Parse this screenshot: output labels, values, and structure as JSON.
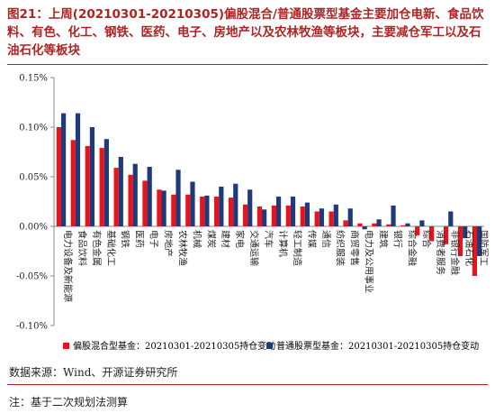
{
  "title": "图21：上周(20210301-20210305)偏股混合/普通股票型基金主要加仓电新、食品饮料、有色、化工、钢铁、医药、电子、房地产以及农林牧渔等板块，主要减仓军工以及石油石化等板块",
  "source": "数据来源：Wind、开源证券研究所",
  "note": "注：基于二次规划法测算",
  "colors": {
    "series1": "#e8141c",
    "series2": "#1f3a7a",
    "accent": "#b22222"
  },
  "chart_data": {
    "type": "bar",
    "ylim": [
      -0.1,
      0.15
    ],
    "yticks": [
      "0.15%",
      "0.10%",
      "0.05%",
      "0.00%",
      "-0.05%",
      "-0.10%"
    ],
    "ytick_values": [
      0.15,
      0.1,
      0.05,
      0.0,
      -0.05,
      -0.1
    ],
    "grid": false,
    "legend": "bottom",
    "categories": [
      "电力设备及新能源",
      "食品饮料",
      "有色金属",
      "基础化工",
      "钢铁",
      "医药",
      "电子",
      "房地产",
      "农林牧渔",
      "机械",
      "煤炭",
      "建材",
      "家电",
      "交通运输",
      "汽车",
      "计算机",
      "轻工制造",
      "传媒",
      "通信",
      "纺织服装",
      "商贸零售",
      "电力及公用事业",
      "建筑",
      "银行",
      "综合金融",
      "综合",
      "消费者服务",
      "非银行金融",
      "石油石化",
      "国防军工"
    ],
    "series": [
      {
        "name": "偏股混合型基金：20210301-20210305持仓变动",
        "values": [
          0.1,
          0.087,
          0.081,
          0.079,
          0.059,
          0.052,
          0.046,
          0.037,
          0.032,
          0.032,
          0.03,
          0.03,
          0.029,
          0.022,
          0.02,
          0.021,
          0.021,
          0.02,
          0.015,
          0.015,
          0.006,
          0.003,
          0.003,
          0.002,
          0.001,
          -0.009,
          -0.015,
          -0.018,
          -0.03,
          -0.05
        ]
      },
      {
        "name": "普通股票型基金：20210301-20210305持仓变动",
        "values": [
          0.114,
          0.114,
          0.1,
          0.088,
          0.07,
          0.063,
          0.06,
          0.036,
          0.057,
          0.045,
          0.031,
          0.04,
          0.043,
          0.037,
          0.017,
          0.03,
          0.03,
          0.024,
          0.018,
          0.022,
          0.018,
          -0.003,
          0.007,
          0.021,
          0.003,
          0.006,
          0.0,
          0.015,
          -0.012,
          -0.03
        ]
      }
    ]
  }
}
